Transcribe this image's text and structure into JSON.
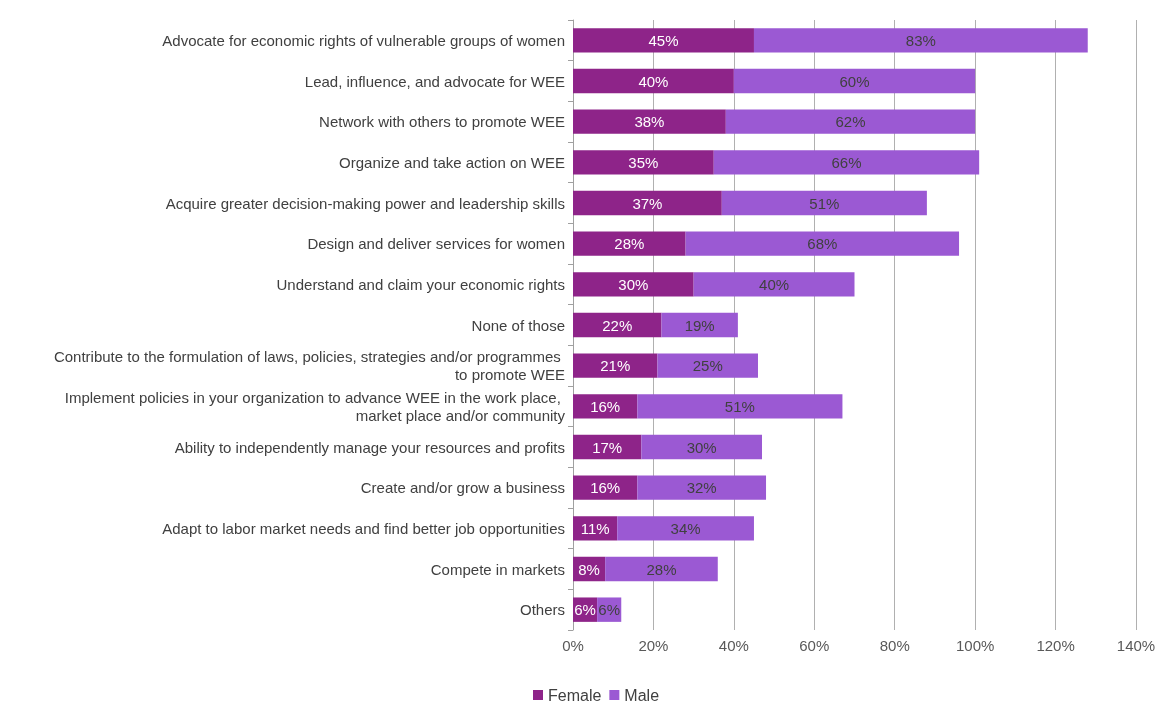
{
  "chart_data": {
    "type": "bar",
    "orientation": "horizontal",
    "stacked": true,
    "categories": [
      "Advocate for economic rights of vulnerable groups of women",
      "Lead, influence, and advocate for WEE",
      "Network with others to promote WEE",
      "Organize and take action on WEE",
      "Acquire greater decision-making power and leadership skills",
      "Design and deliver services for women",
      "Understand and claim your economic rights",
      "None of those",
      "Contribute to the formulation of laws, policies, strategies and/or programmes to promote WEE",
      "Implement policies in your organization to advance WEE in the work place, market place and/or community",
      "Ability to independently manage your resources and profits",
      "Create and/or grow a business",
      "Adapt to labor market needs and find better job opportunities",
      "Compete in markets",
      "Others"
    ],
    "series": [
      {
        "name": "Female",
        "color": "#8e2489",
        "values": [
          45,
          40,
          38,
          35,
          37,
          28,
          30,
          22,
          21,
          16,
          17,
          16,
          11,
          8,
          6
        ],
        "value_labels": [
          "45%",
          "40%",
          "38%",
          "35%",
          "37%",
          "28%",
          "30%",
          "22%",
          "21%",
          "16%",
          "17%",
          "16%",
          "11%",
          "8%",
          "6%"
        ]
      },
      {
        "name": "Male",
        "color": "#9b59d3",
        "values": [
          83,
          60,
          62,
          66,
          51,
          68,
          40,
          19,
          25,
          51,
          30,
          32,
          34,
          28,
          6
        ],
        "value_labels": [
          "83%",
          "60%",
          "62%",
          "66%",
          "51%",
          "68%",
          "40%",
          "19%",
          "25%",
          "51%",
          "30%",
          "32%",
          "34%",
          "28%",
          "6%"
        ]
      }
    ],
    "xlim": [
      0,
      140
    ],
    "xticks": [
      {
        "value": 0,
        "label": "0%"
      },
      {
        "value": 20,
        "label": "20%"
      },
      {
        "value": 40,
        "label": "40%"
      },
      {
        "value": 60,
        "label": "60%"
      },
      {
        "value": 80,
        "label": "80%"
      },
      {
        "value": 100,
        "label": "100%"
      },
      {
        "value": 120,
        "label": "120%"
      },
      {
        "value": 140,
        "label": "140%"
      }
    ],
    "grid": "x",
    "legend": "bottom"
  }
}
